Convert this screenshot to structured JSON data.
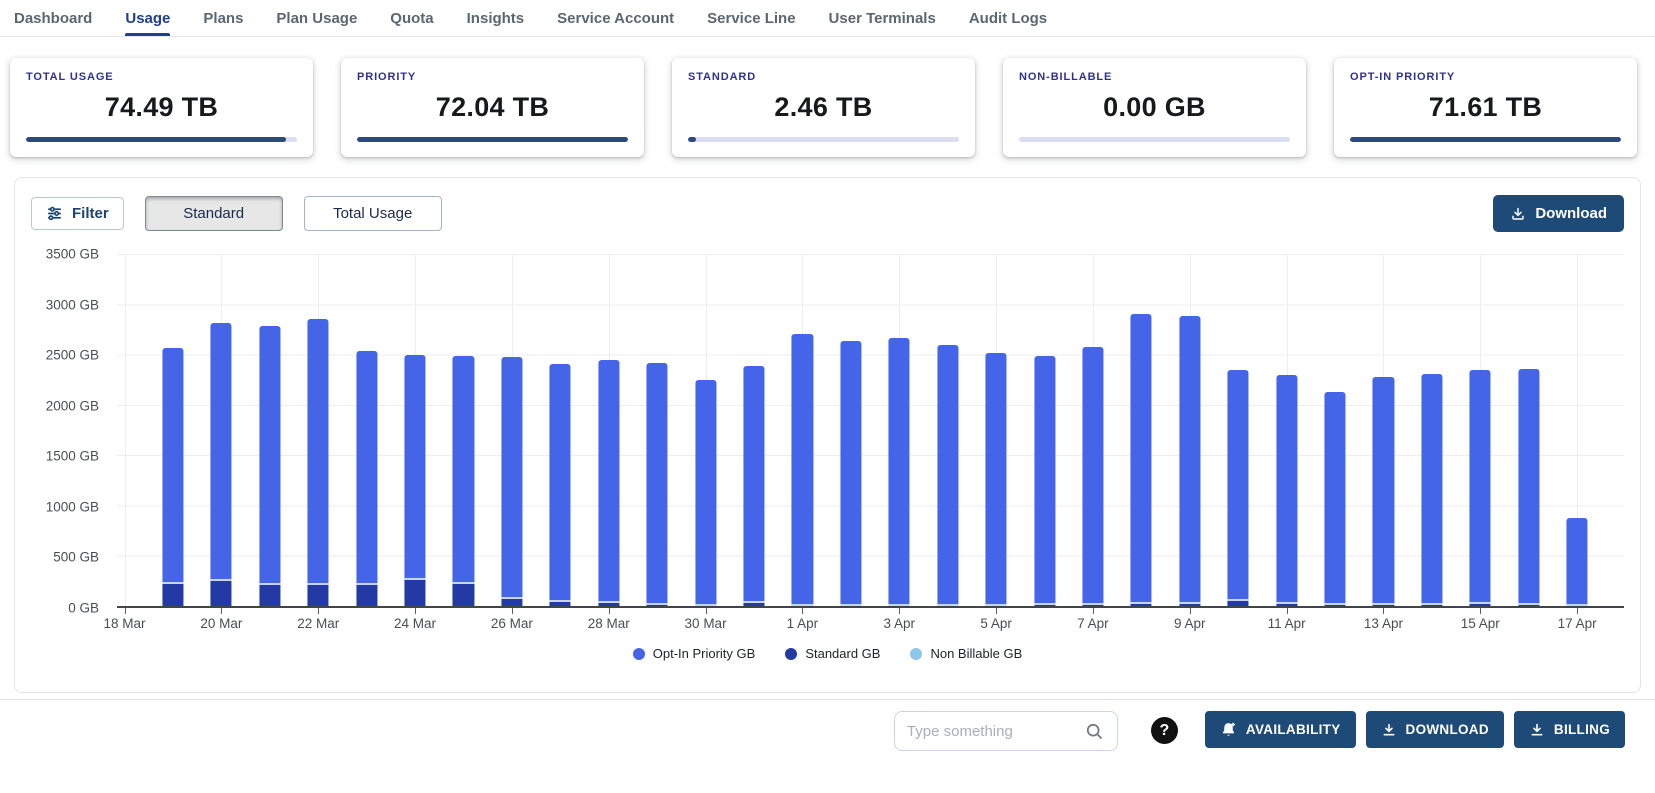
{
  "nav": {
    "items": [
      {
        "label": "Dashboard",
        "active": false
      },
      {
        "label": "Usage",
        "active": true
      },
      {
        "label": "Plans",
        "active": false
      },
      {
        "label": "Plan Usage",
        "active": false
      },
      {
        "label": "Quota",
        "active": false
      },
      {
        "label": "Insights",
        "active": false
      },
      {
        "label": "Service Account",
        "active": false
      },
      {
        "label": "Service Line",
        "active": false
      },
      {
        "label": "User Terminals",
        "active": false
      },
      {
        "label": "Audit Logs",
        "active": false
      }
    ]
  },
  "stats": [
    {
      "label": "TOTAL USAGE",
      "value": "74.49 TB",
      "progress_pct": 96
    },
    {
      "label": "PRIORITY",
      "value": "72.04 TB",
      "progress_pct": 100
    },
    {
      "label": "STANDARD",
      "value": "2.46 TB",
      "progress_pct": 3
    },
    {
      "label": "NON-BILLABLE",
      "value": "0.00 GB",
      "progress_pct": 0
    },
    {
      "label": "OPT-IN PRIORITY",
      "value": "71.61 TB",
      "progress_pct": 100
    }
  ],
  "controls": {
    "filter_label": "Filter",
    "tabs": [
      {
        "label": "Standard",
        "selected": true
      },
      {
        "label": "Total Usage",
        "selected": false
      }
    ],
    "download_label": "Download"
  },
  "chart_data": {
    "type": "bar",
    "stacked": true,
    "unit": "GB",
    "ylim": [
      0,
      3500
    ],
    "ytick_step": 500,
    "yticks": [
      "3500 GB",
      "3000 GB",
      "2500 GB",
      "2000 GB",
      "1500 GB",
      "1000 GB",
      "500 GB",
      "0 GB"
    ],
    "grid": true,
    "legend_position": "bottom",
    "categories": [
      "18 Mar",
      "19 Mar",
      "20 Mar",
      "21 Mar",
      "22 Mar",
      "23 Mar",
      "24 Mar",
      "25 Mar",
      "26 Mar",
      "27 Mar",
      "28 Mar",
      "29 Mar",
      "30 Mar",
      "31 Mar",
      "1 Apr",
      "2 Apr",
      "3 Apr",
      "4 Apr",
      "5 Apr",
      "6 Apr",
      "7 Apr",
      "8 Apr",
      "9 Apr",
      "10 Apr",
      "11 Apr",
      "12 Apr",
      "13 Apr",
      "14 Apr",
      "15 Apr",
      "16 Apr",
      "17 Apr"
    ],
    "xticks": [
      "18 Mar",
      "20 Mar",
      "22 Mar",
      "24 Mar",
      "26 Mar",
      "28 Mar",
      "30 Mar",
      "1 Apr",
      "3 Apr",
      "5 Apr",
      "7 Apr",
      "9 Apr",
      "11 Apr",
      "13 Apr",
      "15 Apr",
      "17 Apr"
    ],
    "series": [
      {
        "name": "Opt-In Priority GB",
        "color": "#4565e8",
        "values": [
          0,
          2330,
          2540,
          2550,
          2625,
          2315,
          2220,
          2255,
          2395,
          2355,
          2405,
          2390,
          2238,
          2345,
          2685,
          2622,
          2650,
          2586,
          2506,
          2464,
          2548,
          2858,
          2842,
          2285,
          2260,
          2100,
          2254,
          2284,
          2314,
          2328,
          864
        ]
      },
      {
        "name": "Standard GB",
        "color": "#2339a3",
        "values": [
          0,
          240,
          270,
          230,
          225,
          225,
          280,
          235,
          85,
          55,
          45,
          30,
          12,
          45,
          15,
          18,
          10,
          14,
          14,
          26,
          32,
          42,
          38,
          65,
          40,
          30,
          26,
          26,
          36,
          32,
          16
        ]
      },
      {
        "name": "Non Billable GB",
        "color": "#8ec7ea",
        "values": [
          0,
          0,
          0,
          0,
          0,
          0,
          0,
          0,
          0,
          0,
          0,
          0,
          0,
          0,
          0,
          0,
          0,
          0,
          0,
          0,
          0,
          0,
          0,
          0,
          0,
          0,
          0,
          0,
          0,
          0,
          0
        ]
      }
    ]
  },
  "toolbar": {
    "search_placeholder": "Type something",
    "help_label": "?",
    "buttons": [
      {
        "label": "AVAILABILITY",
        "icon": "bell-plus-icon"
      },
      {
        "label": "DOWNLOAD",
        "icon": "download-icon"
      },
      {
        "label": "BILLING",
        "icon": "download-icon"
      }
    ]
  },
  "colors": {
    "nav_active": "#1f3e8c",
    "stat_label": "#2e3192",
    "progress_fill": "#2d4a7e",
    "progress_track": "#dadef2",
    "button_navy": "#1e4a78",
    "bar_opt_in": "#4565e8",
    "bar_standard": "#2339a3",
    "bar_non_billable": "#8ec7ea"
  }
}
